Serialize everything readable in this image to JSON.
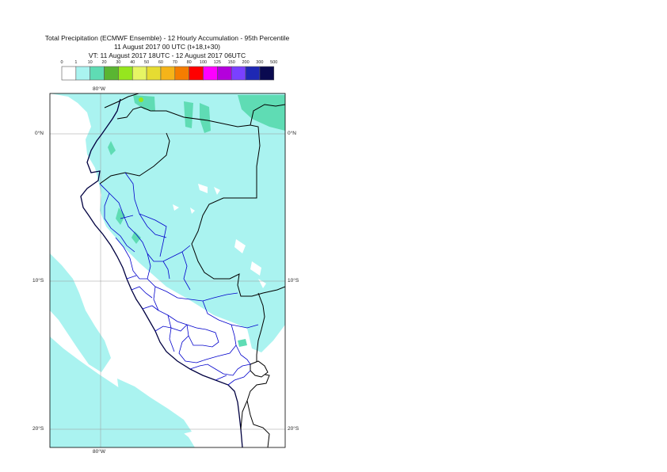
{
  "title": {
    "line1": "Total Precipitation (ECMWF Ensemble) - 12 Hourly Accumulation - 95th Percentile",
    "line2": "11 August 2017 00 UTC (t+18,t+30)",
    "line3": "VT: 11 August 2017 18UTC - 12 August 2017 06UTC"
  },
  "legend": {
    "ticks": [
      "0",
      "1",
      "10",
      "20",
      "30",
      "40",
      "50",
      "60",
      "70",
      "80",
      "100",
      "125",
      "150",
      "200",
      "300",
      "500"
    ],
    "colors": [
      "#ffffff",
      "#aaf3f0",
      "#5fdcb4",
      "#5ab532",
      "#96e61e",
      "#e6f564",
      "#e6dc32",
      "#f5b419",
      "#f57d00",
      "#ff0000",
      "#ff00ff",
      "#b400dc",
      "#7a40ff",
      "#1e28b4",
      "#0a0a50"
    ]
  },
  "map": {
    "lat_labels": {
      "n0_left": "0°N",
      "n0_right": "0°N",
      "s10_left": "10°S",
      "s10_right": "10°S",
      "s20_left": "20°S",
      "s20_right": "20°S"
    },
    "lon_labels": {
      "top": "80°W",
      "bottom": "80°W"
    },
    "colors": {
      "light_precip": "#aaf3f0",
      "medium_precip": "#5fdcb4",
      "yellow_green": "#96e61e",
      "country_border": "#000000",
      "region_border": "#0000cc",
      "coast": "#000040",
      "graticule": "#999999"
    }
  }
}
